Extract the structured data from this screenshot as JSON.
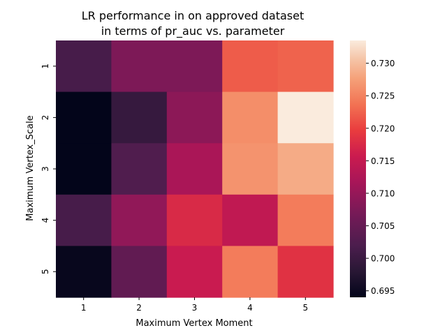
{
  "chart_data": {
    "type": "heatmap",
    "title_line1": "LR performance in on approved dataset",
    "title_line2": "in terms of pr_auc vs. parameter",
    "xlabel": "Maximum Vertex Moment",
    "ylabel": "Maximum Vertex_Scale",
    "x_categories": [
      "1",
      "2",
      "3",
      "4",
      "5"
    ],
    "y_categories": [
      "1",
      "2",
      "3",
      "4",
      "5"
    ],
    "values": [
      [
        0.7015,
        0.7075,
        0.7075,
        0.722,
        0.7225
      ],
      [
        0.694,
        0.6995,
        0.709,
        0.726,
        0.7335
      ],
      [
        0.694,
        0.7025,
        0.712,
        0.7265,
        0.7285
      ],
      [
        0.7015,
        0.7095,
        0.7175,
        0.7145,
        0.7245
      ],
      [
        0.6945,
        0.7045,
        0.7155,
        0.7245,
        0.7185
      ]
    ],
    "colorbar": {
      "min": 0.694,
      "max": 0.7335,
      "ticks": [
        "0.695",
        "0.700",
        "0.705",
        "0.710",
        "0.715",
        "0.720",
        "0.725",
        "0.730"
      ],
      "tick_values": [
        0.695,
        0.7,
        0.705,
        0.71,
        0.715,
        0.72,
        0.725,
        0.73
      ],
      "colormap": "rocket"
    },
    "grid": false
  }
}
